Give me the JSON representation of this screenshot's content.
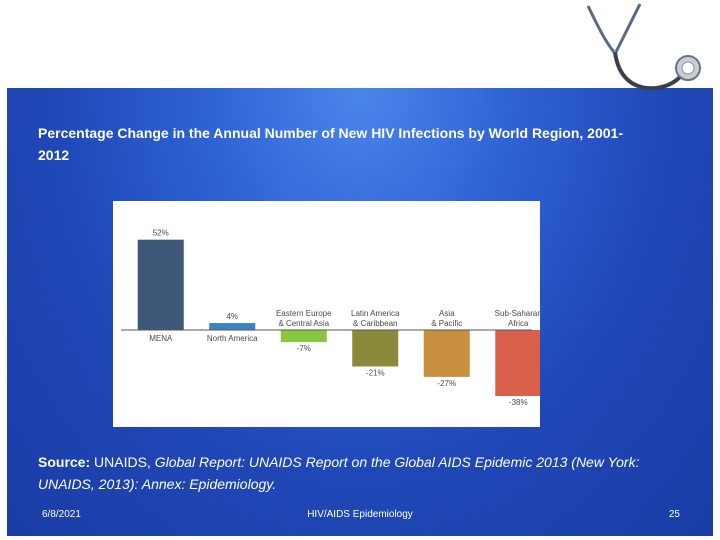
{
  "slide": {
    "title": "Percentage Change in the Annual Number of New HIV Infections by World Region, 2001-2012",
    "source_lead": "Source:",
    "source_plain": " UNAIDS, ",
    "source_italic": "Global Report: UNAIDS Report on the Global AIDS Epidemic 2013 (New York: UNAIDS, 2013): Annex: Epidemiology.",
    "decor_icon": "stethoscope-icon"
  },
  "footer": {
    "date": "6/8/2021",
    "center": "HIV/AIDS Epidemiology",
    "page": "25"
  },
  "chart_data": {
    "type": "bar",
    "title": "",
    "xlabel": "",
    "ylabel": "",
    "ylim": [
      -38,
      52
    ],
    "categories": [
      "MENA",
      "North America",
      "Eastern Europe & Central Asia",
      "Latin America & Caribbean",
      "Asia & Pacific",
      "Sub-Saharan Africa"
    ],
    "values": [
      52,
      4,
      -7,
      -21,
      -27,
      -38
    ],
    "data_labels": [
      "52%",
      "4%",
      "-7%",
      "-21%",
      "-27%",
      "-38%"
    ],
    "colors": [
      "#3f5879",
      "#3b83c2",
      "#8ac540",
      "#8a8a3a",
      "#c9913f",
      "#d9604a"
    ]
  }
}
